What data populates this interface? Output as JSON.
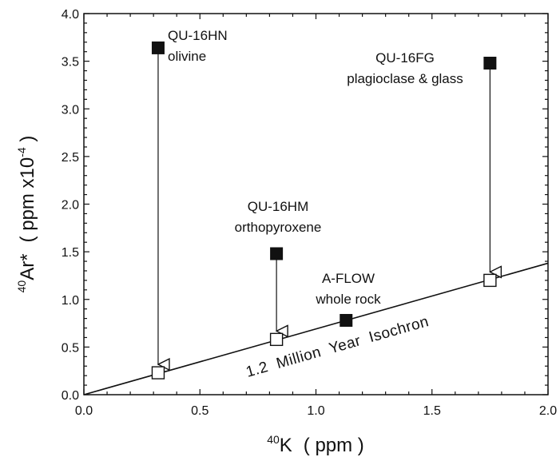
{
  "chart_data": {
    "type": "scatter",
    "title": "",
    "xlabel": {
      "sup": "40",
      "main": "K",
      "unit": "( ppm )"
    },
    "ylabel": {
      "sup": "40",
      "main": "Ar*",
      "unit_open": "( ppm x10",
      "unit_exp": "-4",
      "unit_close": " )"
    },
    "xlim": [
      0.0,
      2.0
    ],
    "ylim": [
      0.0,
      4.0
    ],
    "x_ticks": [
      0.0,
      0.5,
      1.0,
      1.5,
      2.0
    ],
    "x_tick_labels": [
      "0.0",
      "0.5",
      "1.0",
      "1.5",
      "2.0"
    ],
    "y_ticks": [
      0.0,
      0.5,
      1.0,
      1.5,
      2.0,
      2.5,
      3.0,
      3.5,
      4.0
    ],
    "y_tick_labels": [
      "0.0",
      "0.5",
      "1.0",
      "1.5",
      "2.0",
      "2.5",
      "3.0",
      "3.5",
      "4.0"
    ],
    "grid": false,
    "isochron": {
      "label": "1.2  Million  Year  Isochron",
      "x": [
        0.0,
        2.0
      ],
      "y": [
        0.0,
        1.38
      ]
    },
    "samples": [
      {
        "name": "QU-16HN",
        "mineral": "olivine",
        "x": 0.32,
        "measured": 3.64,
        "corrected": 0.23,
        "marker": "filled"
      },
      {
        "name": "QU-16HM",
        "mineral": "orthopyroxene",
        "x": 0.83,
        "measured": 1.48,
        "corrected": 0.58,
        "marker": "filled"
      },
      {
        "name": "QU-16FG",
        "mineral": "plagioclase & glass",
        "x": 1.75,
        "measured": 3.48,
        "corrected": 1.2,
        "marker": "filled"
      },
      {
        "name": "A-FLOW",
        "mineral": "whole rock",
        "x": 1.13,
        "measured": 0.78,
        "corrected": null,
        "marker": "filled"
      }
    ]
  }
}
